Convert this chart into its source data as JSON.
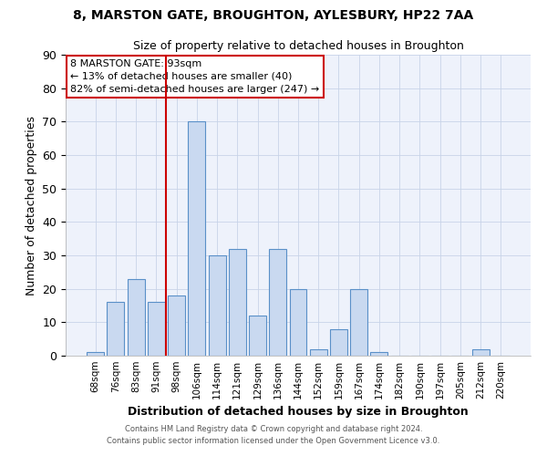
{
  "title_line1": "8, MARSTON GATE, BROUGHTON, AYLESBURY, HP22 7AA",
  "title_line2": "Size of property relative to detached houses in Broughton",
  "xlabel": "Distribution of detached houses by size in Broughton",
  "ylabel": "Number of detached properties",
  "bar_labels": [
    "68sqm",
    "76sqm",
    "83sqm",
    "91sqm",
    "98sqm",
    "106sqm",
    "114sqm",
    "121sqm",
    "129sqm",
    "136sqm",
    "144sqm",
    "152sqm",
    "159sqm",
    "167sqm",
    "174sqm",
    "182sqm",
    "190sqm",
    "197sqm",
    "205sqm",
    "212sqm",
    "220sqm"
  ],
  "bar_values": [
    1,
    16,
    23,
    16,
    18,
    70,
    30,
    32,
    12,
    32,
    20,
    2,
    8,
    20,
    1,
    0,
    0,
    0,
    0,
    2,
    0
  ],
  "bar_color": "#c9d9f0",
  "bar_edgecolor": "#5a90c8",
  "annotation_title": "8 MARSTON GATE: 93sqm",
  "annotation_line2": "← 13% of detached houses are smaller (40)",
  "annotation_line3": "82% of semi-detached houses are larger (247) →",
  "annotation_box_color": "#ffffff",
  "annotation_box_edgecolor": "#cc0000",
  "vline_color": "#cc0000",
  "ylim": [
    0,
    90
  ],
  "yticks": [
    0,
    10,
    20,
    30,
    40,
    50,
    60,
    70,
    80,
    90
  ],
  "footer_line1": "Contains HM Land Registry data © Crown copyright and database right 2024.",
  "footer_line2": "Contains public sector information licensed under the Open Government Licence v3.0.",
  "bg_color": "#eef2fb",
  "grid_color": "#c8d4e8"
}
